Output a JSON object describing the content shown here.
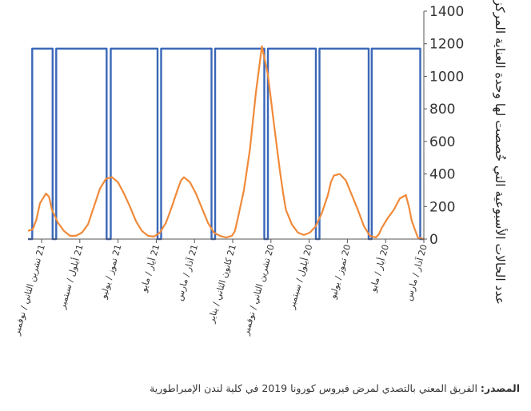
{
  "chart_data": {
    "type": "line",
    "title": "",
    "ylabel": "عدد الحالات الأسبوعية التي خُصصت لها وحدة العناية المركزة للمرضى",
    "xlabel": "",
    "ylim": [
      0,
      1400
    ],
    "yticks": [
      "0",
      "200",
      "400",
      "600",
      "800",
      "1000",
      "1200",
      "1400"
    ],
    "y_axis_position": "right",
    "x_axis_reversed": true,
    "grid": false,
    "legend": "none",
    "x_tick_labels": [
      "20 آذار / مارس",
      "20 أيار / مايو",
      "20 تموز / يوليو",
      "20 أيلول / سبتمبر",
      "20 تشرين الثاني / نوفمبر",
      "21 كانون الثاني / يناير",
      "21 آذار / مارس",
      "21 أيار / مايو",
      "21 تموز / يوليو",
      "21 أيلول / سبتمبر",
      "21 تشرين الثاني / نوفمبر"
    ],
    "series": [
      {
        "color": "#3a67b8",
        "kind": "step",
        "x": [
          0,
          0.6,
          0.6,
          8.7,
          8.7,
          9.2,
          9.2,
          17.4,
          17.4,
          18.0,
          18.0,
          26.0,
          26.0,
          26.6,
          26.6,
          34.8,
          34.8,
          35.4,
          35.4,
          43.8,
          43.8,
          44.4,
          44.4,
          52.2,
          52.2,
          52.9,
          52.9,
          61.3,
          61.3,
          61.9,
          61.9,
          65.3,
          65.3,
          66
        ],
        "y": [
          0,
          0,
          1170,
          1170,
          0,
          0,
          1170,
          1170,
          0,
          0,
          1170,
          1170,
          0,
          0,
          1170,
          1170,
          0,
          0,
          1170,
          1170,
          0,
          0,
          1170,
          1170,
          0,
          0,
          1170,
          1170,
          0,
          0,
          1170,
          1170,
          0,
          0
        ]
      },
      {
        "color": "#f08a3a",
        "kind": "line",
        "x": [
          0,
          1,
          2,
          2.5,
          3,
          4,
          5,
          6,
          7,
          7.5,
          8,
          9,
          10,
          11,
          12,
          13,
          14,
          15,
          15.5,
          16,
          17,
          18,
          19,
          20,
          21,
          22,
          23,
          23.5,
          24,
          25,
          26,
          27,
          28,
          29,
          30,
          31,
          31.5,
          32,
          33,
          34,
          35,
          36,
          37,
          38,
          39,
          40,
          40.5,
          41,
          42,
          43,
          44,
          45,
          46,
          47,
          48,
          49,
          50,
          51,
          52,
          53,
          54,
          55,
          56,
          57,
          58,
          59,
          60,
          61,
          62,
          62.5,
          63,
          64,
          64.6,
          65.2,
          66
        ],
        "y": [
          0,
          10,
          110,
          200,
          270,
          250,
          180,
          130,
          70,
          30,
          10,
          20,
          80,
          180,
          270,
          360,
          400,
          390,
          350,
          270,
          160,
          80,
          40,
          25,
          40,
          90,
          180,
          290,
          420,
          710,
          1010,
          1185,
          900,
          550,
          300,
          130,
          50,
          20,
          10,
          20,
          40,
          100,
          190,
          280,
          350,
          380,
          360,
          310,
          200,
          100,
          40,
          15,
          20,
          50,
          110,
          200,
          280,
          350,
          380,
          370,
          310,
          200,
          90,
          40,
          20,
          20,
          50,
          100,
          180,
          260,
          280,
          220,
          120,
          60,
          50
        ]
      }
    ]
  },
  "source": {
    "label": "المصدر:",
    "text": "الفريق المعني بالتصدي لمرض فيروس كورونا 2019 في كلية لندن الإمبراطورية"
  }
}
